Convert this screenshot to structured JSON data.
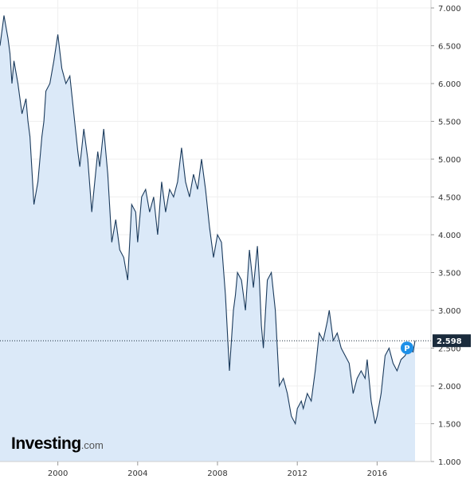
{
  "chart_data": {
    "type": "area",
    "x_tick_labels": [
      "2000",
      "2004",
      "2008",
      "2012",
      "2016"
    ],
    "y_tick_labels": [
      "1.000",
      "1.500",
      "2.000",
      "2.500",
      "3.000",
      "3.500",
      "4.000",
      "4.500",
      "5.000",
      "5.500",
      "6.000",
      "6.500",
      "7.000"
    ],
    "y_ticks": [
      1.0,
      1.5,
      2.0,
      2.5,
      3.0,
      3.5,
      4.0,
      4.5,
      5.0,
      5.5,
      6.0,
      6.5,
      7.0
    ],
    "x_ticks": [
      2000,
      2004,
      2008,
      2012,
      2016
    ],
    "xlim": [
      1997.1,
      2018.7
    ],
    "ylim": [
      1.0,
      7.0
    ],
    "grid": true,
    "last_value": 2.598,
    "last_value_label": "2.598",
    "marker_label": "P",
    "colors": {
      "line": "#1a3a5c",
      "fill": "#dbe9f8",
      "badge": "#1a2b3c",
      "marker": "#1e90e8"
    },
    "series": [
      {
        "x": [
          1997.1,
          1997.2,
          1997.3,
          1997.4,
          1997.5,
          1997.6,
          1997.7,
          1997.8,
          1998.0,
          1998.2,
          1998.4,
          1998.5,
          1998.6,
          1998.8,
          1999.0,
          1999.2,
          1999.3,
          1999.4,
          1999.6,
          1999.8,
          2000.0,
          2000.2,
          2000.4,
          2000.6,
          2000.8,
          2001.0,
          2001.1,
          2001.3,
          2001.5,
          2001.7,
          2002.0,
          2002.1,
          2002.3,
          2002.5,
          2002.7,
          2002.9,
          2003.1,
          2003.3,
          2003.5,
          2003.7,
          2003.9,
          2004.0,
          2004.2,
          2004.4,
          2004.6,
          2004.8,
          2005.0,
          2005.2,
          2005.4,
          2005.6,
          2005.8,
          2006.0,
          2006.2,
          2006.4,
          2006.6,
          2006.8,
          2007.0,
          2007.2,
          2007.4,
          2007.6,
          2007.8,
          2008.0,
          2008.2,
          2008.4,
          2008.6,
          2008.8,
          2008.9,
          2009.0,
          2009.2,
          2009.4,
          2009.6,
          2009.8,
          2010.0,
          2010.1,
          2010.2,
          2010.3,
          2010.5,
          2010.7,
          2010.9,
          2011.1,
          2011.3,
          2011.5,
          2011.7,
          2011.9,
          2012.0,
          2012.2,
          2012.3,
          2012.5,
          2012.7,
          2012.9,
          2013.1,
          2013.3,
          2013.5,
          2013.6,
          2013.8,
          2014.0,
          2014.2,
          2014.4,
          2014.6,
          2014.8,
          2015.0,
          2015.2,
          2015.4,
          2015.5,
          2015.7,
          2015.9,
          2016.0,
          2016.2,
          2016.4,
          2016.6,
          2016.8,
          2017.0,
          2017.2,
          2017.4,
          2017.6,
          2017.8,
          2017.9
        ],
        "y": [
          6.5,
          6.7,
          6.9,
          6.75,
          6.6,
          6.4,
          6.0,
          6.3,
          6.0,
          5.6,
          5.8,
          5.5,
          5.3,
          4.4,
          4.7,
          5.3,
          5.5,
          5.9,
          6.0,
          6.3,
          6.65,
          6.2,
          6.0,
          6.1,
          5.6,
          5.1,
          4.9,
          5.4,
          5.0,
          4.3,
          5.1,
          4.9,
          5.4,
          4.8,
          3.9,
          4.2,
          3.8,
          3.7,
          3.4,
          4.4,
          4.3,
          3.9,
          4.5,
          4.6,
          4.3,
          4.5,
          4.0,
          4.7,
          4.3,
          4.6,
          4.5,
          4.7,
          5.15,
          4.7,
          4.5,
          4.8,
          4.6,
          5.0,
          4.6,
          4.1,
          3.7,
          4.0,
          3.9,
          3.2,
          2.2,
          3.0,
          3.2,
          3.5,
          3.4,
          3.0,
          3.8,
          3.3,
          3.85,
          3.4,
          2.8,
          2.5,
          3.4,
          3.5,
          3.0,
          2.0,
          2.1,
          1.9,
          1.6,
          1.5,
          1.7,
          1.8,
          1.7,
          1.9,
          1.8,
          2.2,
          2.7,
          2.6,
          2.85,
          3.0,
          2.6,
          2.7,
          2.5,
          2.4,
          2.3,
          1.9,
          2.1,
          2.2,
          2.1,
          2.35,
          1.8,
          1.5,
          1.6,
          1.9,
          2.4,
          2.5,
          2.3,
          2.2,
          2.35,
          2.4,
          2.5,
          2.45,
          2.598
        ]
      }
    ]
  }
}
